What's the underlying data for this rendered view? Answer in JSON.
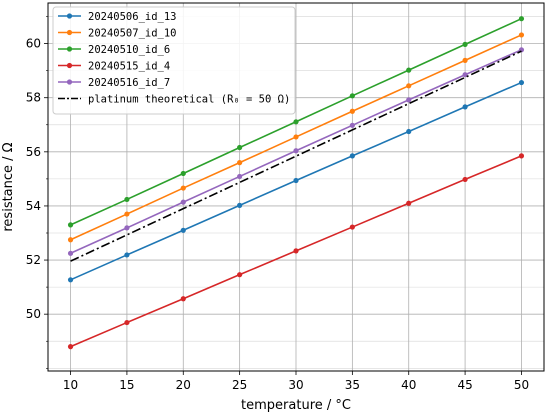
{
  "chart_data": {
    "type": "line",
    "xlabel": "temperature / °C",
    "ylabel": "resistance / Ω",
    "xlim": [
      8,
      52
    ],
    "ylim": [
      47.9,
      61.5
    ],
    "xticks": [
      10,
      15,
      20,
      25,
      30,
      35,
      40,
      45,
      50
    ],
    "yticks": [
      50,
      52,
      54,
      56,
      58,
      60
    ],
    "grid": true,
    "legend_position": "top-left",
    "x": [
      10,
      15,
      20,
      25,
      30,
      35,
      40,
      45,
      50
    ],
    "series": [
      {
        "name": "20240506_id_13",
        "color": "#1f77b4",
        "style": "solid-marker",
        "values": [
          51.27,
          52.19,
          53.1,
          54.02,
          54.94,
          55.85,
          56.75,
          57.66,
          58.56
        ]
      },
      {
        "name": "20240507_id_10",
        "color": "#ff7f0e",
        "style": "solid-marker",
        "values": [
          52.75,
          53.7,
          54.66,
          55.6,
          56.55,
          57.5,
          58.44,
          59.38,
          60.32
        ]
      },
      {
        "name": "20240510_id_6",
        "color": "#2ca02c",
        "style": "solid-marker",
        "values": [
          53.3,
          54.24,
          55.2,
          56.16,
          57.11,
          58.07,
          59.02,
          59.97,
          60.92
        ]
      },
      {
        "name": "20240515_id_4",
        "color": "#d62728",
        "style": "solid-marker",
        "values": [
          48.8,
          49.69,
          50.57,
          51.46,
          52.34,
          53.22,
          54.1,
          54.98,
          55.85
        ]
      },
      {
        "name": "20240516_id_7",
        "color": "#9467bd",
        "style": "solid-marker",
        "values": [
          52.25,
          53.19,
          54.14,
          55.09,
          56.04,
          56.98,
          57.92,
          58.85,
          59.77
        ]
      },
      {
        "name": "platinum theoretical (R₀ = 50 Ω)",
        "color": "#000000",
        "style": "dashdot",
        "values": [
          51.96,
          52.93,
          53.9,
          54.87,
          55.84,
          56.81,
          57.78,
          58.75,
          59.72
        ]
      }
    ]
  }
}
